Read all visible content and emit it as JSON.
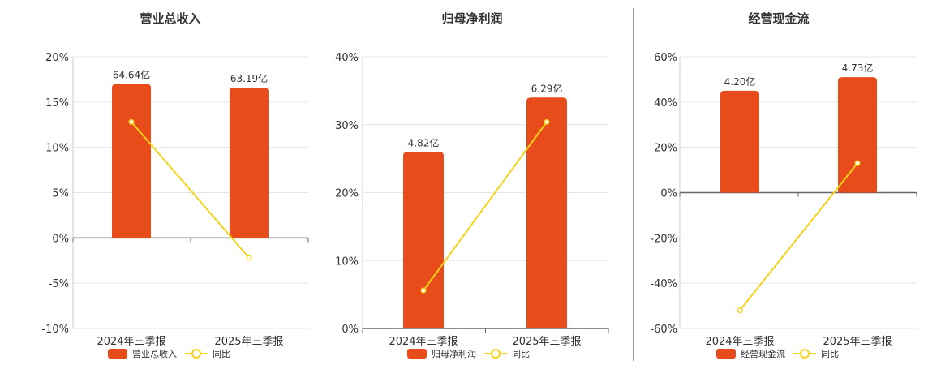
{
  "colors": {
    "bar": "#e84c1a",
    "line": "#f2d21b",
    "grid": "#e6e6e6",
    "axis": "#666666",
    "text": "#333333"
  },
  "chart_data": [
    {
      "type": "bar",
      "title": "营业总收入",
      "categories": [
        "2024年三季报",
        "2025年三季报"
      ],
      "series": [
        {
          "name": "营业总收入",
          "type": "bar",
          "values": [
            17.0,
            16.6
          ],
          "labels": [
            "64.64亿",
            "63.19亿"
          ]
        },
        {
          "name": "同比",
          "type": "line",
          "values": [
            12.8,
            -2.2
          ]
        }
      ],
      "yticks": [
        "20%",
        "15%",
        "10%",
        "5%",
        "0%",
        "-5%",
        "-10%"
      ],
      "ylim": [
        -10,
        20
      ]
    },
    {
      "type": "bar",
      "title": "归母净利润",
      "categories": [
        "2024年三季报",
        "2025年三季报"
      ],
      "series": [
        {
          "name": "归母净利润",
          "type": "bar",
          "values": [
            26.0,
            34.0
          ],
          "labels": [
            "4.82亿",
            "6.29亿"
          ]
        },
        {
          "name": "同比",
          "type": "line",
          "values": [
            5.6,
            30.4
          ]
        }
      ],
      "yticks": [
        "40%",
        "30%",
        "20%",
        "10%",
        "0%"
      ],
      "ylim": [
        0,
        40
      ]
    },
    {
      "type": "bar",
      "title": "经营现金流",
      "categories": [
        "2024年三季报",
        "2025年三季报"
      ],
      "series": [
        {
          "name": "经营现金流",
          "type": "bar",
          "values": [
            45.0,
            51.0
          ],
          "labels": [
            "4.20亿",
            "4.73亿"
          ]
        },
        {
          "name": "同比",
          "type": "line",
          "values": [
            -52.0,
            13.0
          ]
        }
      ],
      "yticks": [
        "60%",
        "40%",
        "20%",
        "0%",
        "-20%",
        "-40%",
        "-60%"
      ],
      "ylim": [
        -60,
        60
      ]
    }
  ]
}
